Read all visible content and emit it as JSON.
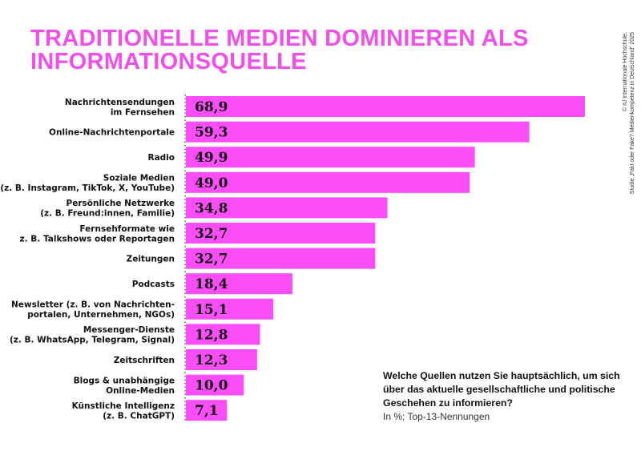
{
  "title": "TRADITIONELLE MEDIEN DOMINIEREN ALS INFORMATIONSQUELLE",
  "credit": [
    "© IU Internationale Hochschule,",
    "Studie „Fakt oder Fake? Medienkompetenz in Deutschland“ 2025"
  ],
  "question": "Welche Quellen nutzen Sie hauptsächlich, um sich über das aktuelle gesellschaftliche und politische Geschehen zu informieren?",
  "unit_note": "In %; Top-13-Nennungen",
  "colors": {
    "bar": "#fb4ef8",
    "title": "#f050e8"
  },
  "chart_data": {
    "type": "bar",
    "orientation": "horizontal",
    "categories": [
      [
        "Nachrichtensendungen",
        "im Fernsehen"
      ],
      [
        "Online-Nachrichtenportale"
      ],
      [
        "Radio"
      ],
      [
        "Soziale Medien",
        "(z. B. Instagram, TikTok, X, YouTube)"
      ],
      [
        "Persönliche Netzwerke",
        "(z. B. Freund:innen, Familie)"
      ],
      [
        "Fernsehformate wie",
        "z. B. Talkshows oder Reportagen"
      ],
      [
        "Zeitungen"
      ],
      [
        "Podcasts"
      ],
      [
        "Newsletter (z. B. von Nachrichten-",
        "portalen, Unternehmen, NGOs)"
      ],
      [
        "Messenger-Dienste",
        "(z. B. WhatsApp, Telegram, Signal)"
      ],
      [
        "Zeitschriften"
      ],
      [
        "Blogs & unabhängige",
        "Online-Medien"
      ],
      [
        "Künstliche Intelligenz",
        "(z. B. ChatGPT)"
      ]
    ],
    "values": [
      68.9,
      59.3,
      49.9,
      49.0,
      34.8,
      32.7,
      32.7,
      18.4,
      15.1,
      12.8,
      12.3,
      10.0,
      7.1
    ],
    "value_labels": [
      "68,9",
      "59,3",
      "49,9",
      "49,0",
      "34,8",
      "32,7",
      "32,7",
      "18,4",
      "15,1",
      "12,8",
      "12,3",
      "10,0",
      "7,1"
    ],
    "xlim": [
      0,
      70
    ],
    "grid": false
  }
}
